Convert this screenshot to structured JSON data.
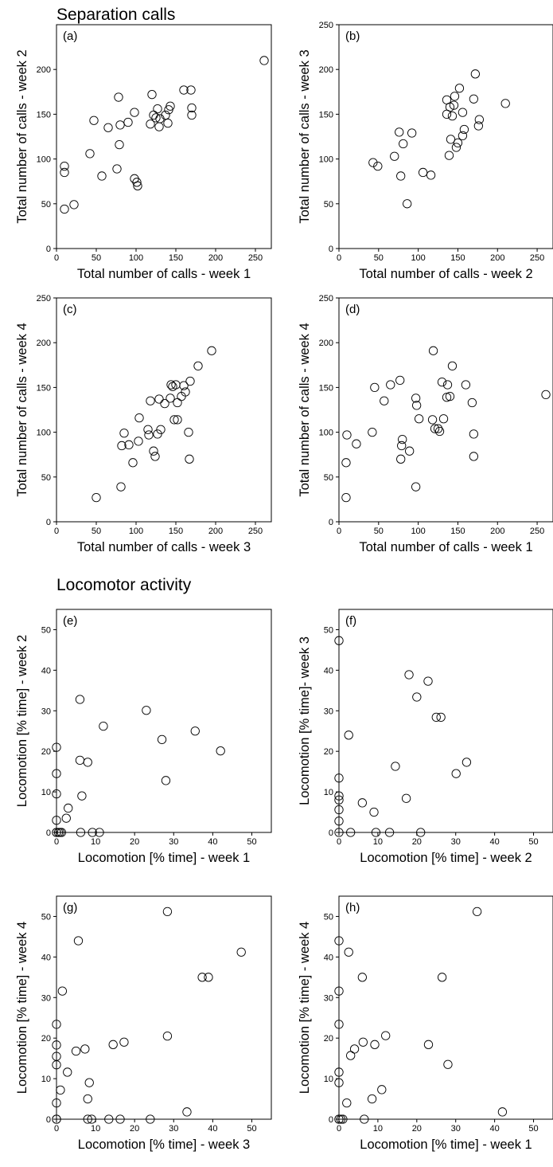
{
  "sections": {
    "separation_title": "Separation calls",
    "locomotor_title": "Locomotor activity"
  },
  "chart_data": [
    {
      "type": "scatter",
      "panel_label": "(a)",
      "xlabel": "Total number of calls - week 1",
      "ylabel": "Total number of calls - week 2",
      "xlim": [
        0,
        270
      ],
      "ylim": [
        0,
        250
      ],
      "xticks": [
        0,
        50,
        100,
        150,
        200,
        250
      ],
      "yticks": [
        0,
        50,
        100,
        150,
        200
      ],
      "x": [
        10,
        10,
        10,
        22,
        42,
        47,
        57,
        65,
        76,
        78,
        79,
        80,
        90,
        98,
        98,
        101,
        102,
        118,
        120,
        122,
        125,
        127,
        129,
        130,
        137,
        140,
        141,
        143,
        160,
        169,
        170,
        170,
        261
      ],
      "y": [
        44,
        92,
        85,
        49,
        106,
        143,
        81,
        135,
        89,
        169,
        116,
        138,
        141,
        152,
        78,
        74,
        70,
        139,
        172,
        149,
        146,
        156,
        136,
        145,
        149,
        140,
        155,
        159,
        177,
        177,
        157,
        149,
        210
      ]
    },
    {
      "type": "scatter",
      "panel_label": "(b)",
      "xlabel": "Total number of calls - week 2",
      "ylabel": "Total number of calls - week 3",
      "xlim": [
        0,
        270
      ],
      "ylim": [
        0,
        250
      ],
      "xticks": [
        0,
        50,
        100,
        150,
        200,
        250
      ],
      "yticks": [
        0,
        50,
        100,
        150,
        200,
        250
      ],
      "x": [
        43,
        49,
        70,
        76,
        78,
        81,
        86,
        92,
        106,
        116,
        136,
        136,
        139,
        140,
        141,
        143,
        145,
        146,
        148,
        150,
        152,
        156,
        156,
        158,
        170,
        172,
        176,
        177,
        210
      ],
      "y": [
        96,
        92,
        103,
        130,
        81,
        117,
        50,
        129,
        85,
        82,
        166,
        150,
        104,
        158,
        122,
        148,
        160,
        170,
        113,
        118,
        179,
        152,
        126,
        133,
        167,
        195,
        137,
        144,
        162
      ]
    },
    {
      "type": "scatter",
      "panel_label": "(c)",
      "xlabel": "Total number of calls - week 3",
      "ylabel": "Total number of calls - week 4",
      "xlim": [
        0,
        270
      ],
      "ylim": [
        0,
        250
      ],
      "xticks": [
        0,
        50,
        100,
        150,
        200,
        250
      ],
      "yticks": [
        0,
        50,
        100,
        150,
        200,
        250
      ],
      "x": [
        50,
        81,
        82,
        85,
        91,
        96,
        103,
        104,
        115,
        116,
        118,
        122,
        124,
        127,
        129,
        131,
        136,
        143,
        144,
        146,
        148,
        150,
        152,
        152,
        157,
        160,
        162,
        166,
        167,
        168,
        178,
        195
      ],
      "y": [
        27,
        39,
        85,
        99,
        86,
        66,
        90,
        116,
        103,
        97,
        135,
        79,
        73,
        98,
        137,
        103,
        132,
        138,
        153,
        151,
        114,
        153,
        133,
        114,
        140,
        152,
        145,
        100,
        70,
        157,
        174,
        191
      ]
    },
    {
      "type": "scatter",
      "panel_label": "(d)",
      "xlabel": "Total number of calls - week 1",
      "ylabel": "Total number of calls - week 4",
      "xlim": [
        0,
        270
      ],
      "ylim": [
        0,
        250
      ],
      "xticks": [
        0,
        50,
        100,
        150,
        200,
        250
      ],
      "yticks": [
        0,
        50,
        100,
        150,
        200,
        250
      ],
      "x": [
        9,
        9,
        10,
        22,
        42,
        45,
        57,
        65,
        77,
        78,
        79,
        80,
        89,
        97,
        97,
        98,
        101,
        118,
        119,
        121,
        125,
        127,
        130,
        132,
        136,
        137,
        140,
        143,
        160,
        168,
        170,
        170,
        261
      ],
      "y": [
        27,
        66,
        97,
        87,
        100,
        150,
        135,
        153,
        158,
        70,
        85,
        92,
        79,
        39,
        138,
        130,
        115,
        114,
        191,
        104,
        104,
        101,
        156,
        115,
        139,
        153,
        140,
        174,
        153,
        133,
        98,
        73,
        142
      ]
    },
    {
      "type": "scatter",
      "panel_label": "(e)",
      "xlabel": "Locomotion [% time] - week 1",
      "ylabel": "Locomotion [% time] - week 2",
      "xlim": [
        0,
        55
      ],
      "ylim": [
        0,
        55
      ],
      "xticks": [
        0,
        10,
        20,
        30,
        40,
        50
      ],
      "yticks": [
        0,
        10,
        20,
        30,
        40,
        50
      ],
      "x": [
        0,
        0,
        0,
        0,
        0,
        0,
        0.5,
        0.9,
        1.3,
        2.5,
        3,
        6,
        6,
        6.2,
        6.5,
        8,
        9.2,
        11,
        12,
        23,
        27,
        28,
        35.5,
        42
      ],
      "y": [
        0,
        21,
        14.5,
        9.5,
        3,
        0,
        0,
        0,
        0,
        3.5,
        6,
        32.8,
        17.8,
        0,
        9,
        17.3,
        0,
        0,
        26.2,
        30.1,
        22.9,
        12.8,
        25,
        20.1
      ]
    },
    {
      "type": "scatter",
      "panel_label": "(f)",
      "xlabel": "Locomotion [% time] - week 2",
      "ylabel": "Locomotion [% time]- week 3",
      "xlim": [
        0,
        55
      ],
      "ylim": [
        0,
        55
      ],
      "xticks": [
        0,
        10,
        20,
        30,
        40,
        50
      ],
      "yticks": [
        0,
        10,
        20,
        30,
        40,
        50
      ],
      "x": [
        0,
        0,
        0,
        0,
        0,
        0,
        0,
        2.5,
        3,
        6,
        9,
        9.5,
        13,
        14.5,
        17.3,
        18,
        20,
        21,
        22.9,
        25,
        26.2,
        30.1,
        32.8
      ],
      "y": [
        47.3,
        13.4,
        9,
        8,
        5.6,
        2.8,
        0,
        24,
        0,
        7.3,
        5,
        0,
        0,
        16.3,
        8.4,
        38.9,
        33.4,
        0,
        37.3,
        28.4,
        28.4,
        14.5,
        17.3
      ]
    },
    {
      "type": "scatter",
      "panel_label": "(g)",
      "xlabel": "Locomotion [% time] - week 3",
      "ylabel": "Locomotion [% time] - week 4",
      "xlim": [
        0,
        55
      ],
      "ylim": [
        0,
        55
      ],
      "xticks": [
        0,
        10,
        20,
        30,
        40,
        50
      ],
      "yticks": [
        0,
        10,
        20,
        30,
        40,
        50
      ],
      "x": [
        0,
        0,
        0,
        0,
        0,
        0,
        0,
        1,
        1.5,
        2.8,
        5,
        5.6,
        7.3,
        8,
        8,
        8.4,
        9,
        13.4,
        14.5,
        16.3,
        17.3,
        24,
        28.4,
        28.4,
        33.4,
        37.3,
        38.9,
        47.3
      ],
      "y": [
        23.4,
        18.3,
        15.5,
        13.4,
        4,
        0,
        0,
        7.2,
        31.6,
        11.6,
        16.8,
        44,
        17.3,
        0,
        5,
        9,
        0,
        0,
        18.4,
        0,
        19,
        0,
        51.2,
        20.5,
        1.8,
        35,
        35,
        41.2
      ]
    },
    {
      "type": "scatter",
      "panel_label": "(h)",
      "xlabel": "Locomotion [% time] - week 1",
      "ylabel": "Locomotion [% time] - week 4",
      "xlim": [
        0,
        55
      ],
      "ylim": [
        0,
        55
      ],
      "xticks": [
        0,
        10,
        20,
        30,
        40,
        50
      ],
      "yticks": [
        0,
        10,
        20,
        30,
        40,
        50
      ],
      "x": [
        0,
        0,
        0,
        0,
        0,
        0,
        0,
        0.5,
        1,
        2,
        2.5,
        3,
        4,
        6,
        6.2,
        6.5,
        8.5,
        9.2,
        11,
        12,
        23,
        26.5,
        28,
        35.5,
        42
      ],
      "y": [
        44,
        31.6,
        23.4,
        11.6,
        9,
        0,
        0,
        0,
        0,
        4,
        41.2,
        15.7,
        17.3,
        35,
        19,
        0,
        5,
        18.4,
        7.3,
        20.6,
        18.4,
        35,
        13.5,
        51.2,
        1.8
      ]
    }
  ]
}
